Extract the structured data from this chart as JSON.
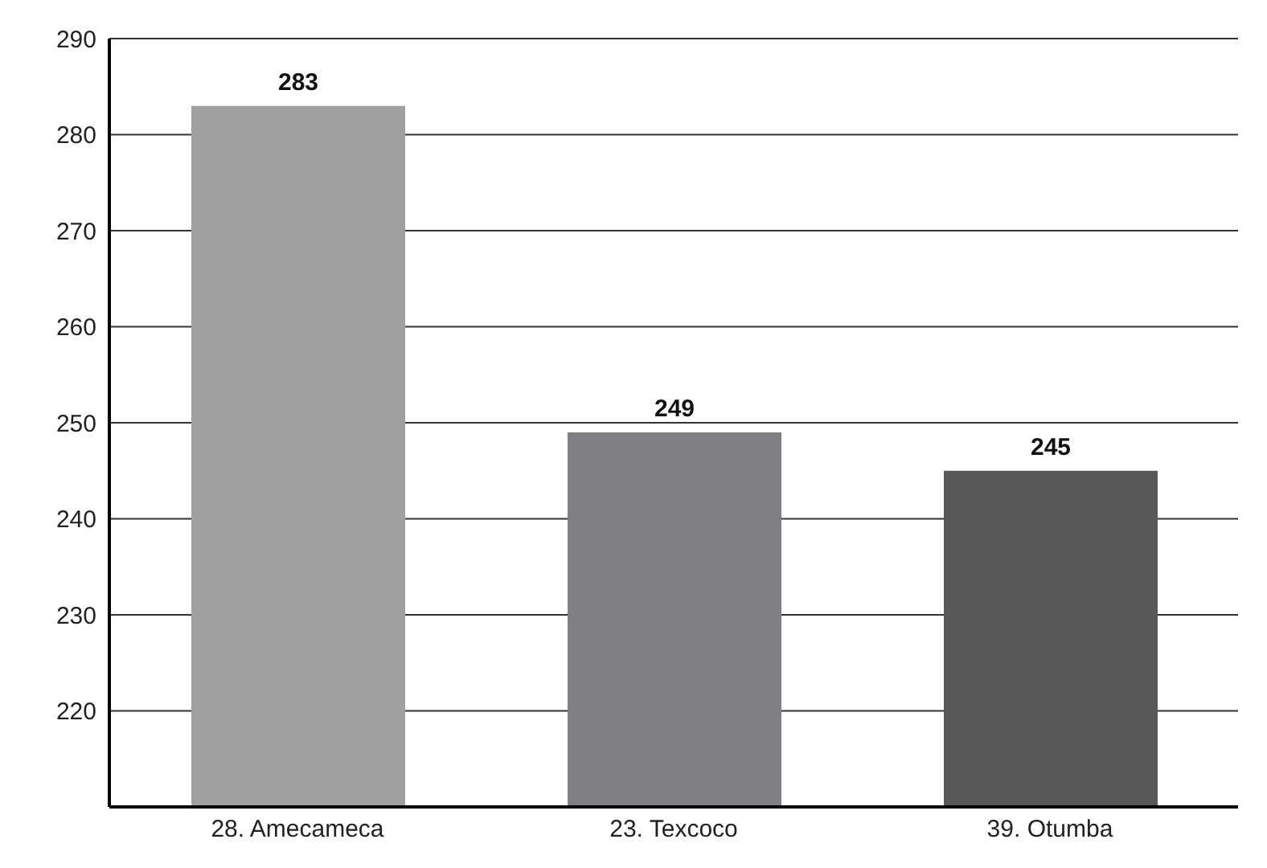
{
  "chart_data": {
    "type": "bar",
    "categories": [
      "28. Amecameca",
      "23. Texcoco",
      "39. Otumba"
    ],
    "values": [
      283,
      249,
      245
    ],
    "colors": [
      "#a0a0a3",
      "#7f8083",
      "#58585a"
    ],
    "ylim": [
      210,
      290
    ],
    "yticks": [
      220,
      230,
      240,
      250,
      260,
      270,
      280,
      290
    ],
    "grid": "y",
    "data_labels": true
  }
}
